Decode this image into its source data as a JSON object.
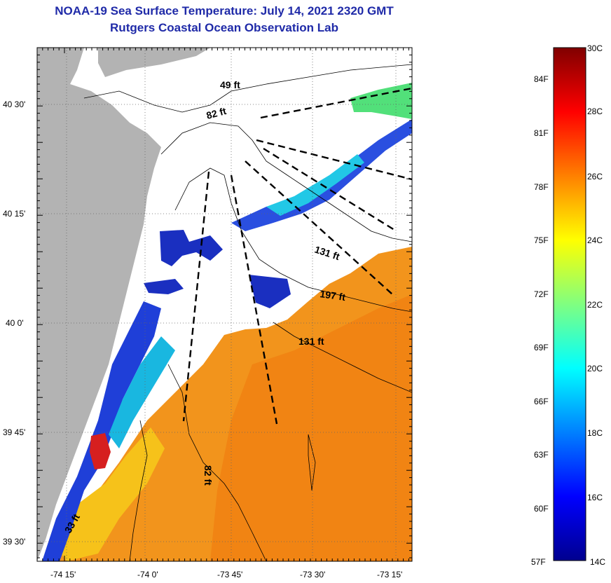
{
  "header": {
    "title": "NOAA-19 Sea Surface Temperature:  July 14, 2021 2320 GMT",
    "subtitle": "Rutgers Coastal Ocean Observation Lab"
  },
  "map": {
    "lat_labels": [
      "40 30'",
      "40 15'",
      "40 0'",
      "39 45'",
      "39 30'"
    ],
    "lon_labels": [
      "-74 15'",
      "-74 0'",
      "-73 45'",
      "-73 30'",
      "-73 15'"
    ],
    "depth_labels": [
      "49 ft",
      "82 ft",
      "131 ft",
      "197 ft",
      "131 ft",
      "82 ft",
      "33 ft"
    ],
    "colors": {
      "land": "#b3b3b3",
      "cloud": "#ffffff"
    }
  },
  "colorbar": {
    "fahrenheit": [
      "84F",
      "81F",
      "78F",
      "75F",
      "72F",
      "69F",
      "66F",
      "63F",
      "60F",
      "57F"
    ],
    "celsius": [
      "30C",
      "28C",
      "26C",
      "24C",
      "22C",
      "20C",
      "18C",
      "16C",
      "14C"
    ],
    "stops": [
      "#00008f",
      "#0000ff",
      "#0080ff",
      "#00ffff",
      "#80ff80",
      "#ffff00",
      "#ff8000",
      "#ff0000",
      "#800000"
    ]
  }
}
